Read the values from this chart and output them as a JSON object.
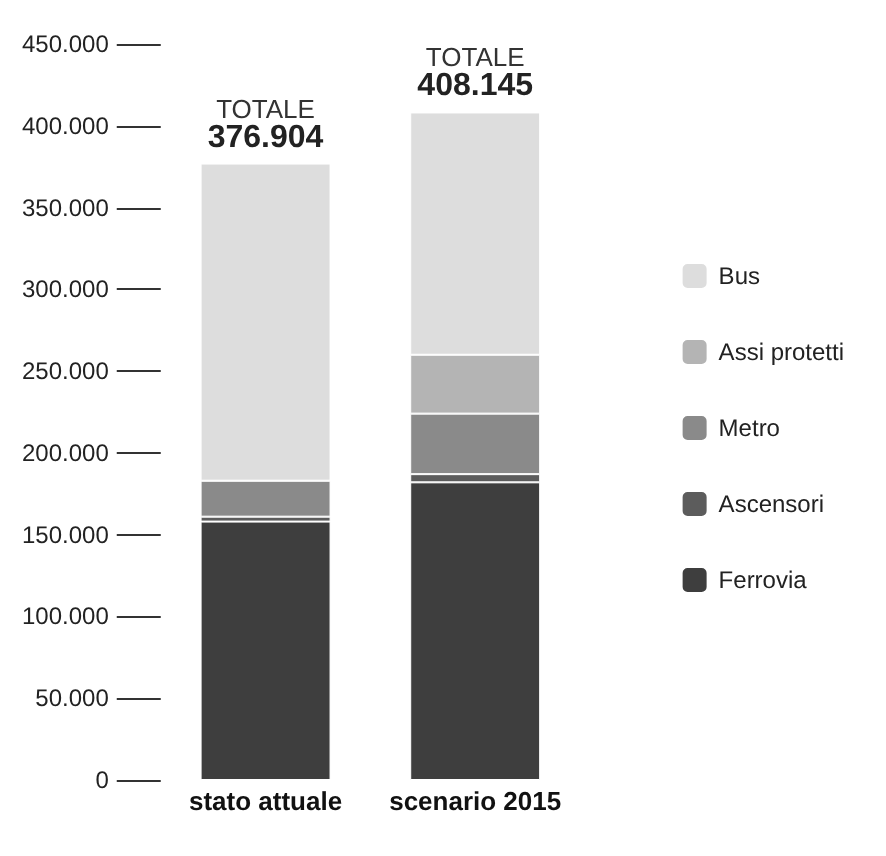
{
  "chart_data": {
    "type": "bar",
    "stacked": true,
    "categories": [
      "stato attuale",
      "scenario 2015"
    ],
    "series": [
      {
        "name": "Ferrovia",
        "color": "#3e3e3e",
        "values": [
          158000,
          182000
        ]
      },
      {
        "name": "Ascensori",
        "color": "#5c5c5c",
        "values": [
          3000,
          5000
        ]
      },
      {
        "name": "Metro",
        "color": "#8a8a8a",
        "values": [
          22000,
          37000
        ]
      },
      {
        "name": "Assi protetti",
        "color": "#b4b4b4",
        "values": [
          0,
          36000
        ]
      },
      {
        "name": "Bus",
        "color": "#dddddd",
        "values": [
          193904,
          148145
        ]
      }
    ],
    "totals": [
      "376.904",
      "408.145"
    ],
    "annotations": [
      "TOTALE",
      "TOTALE"
    ],
    "ylim": [
      0,
      450000
    ],
    "yticks": [
      {
        "value": 0,
        "label": "0"
      },
      {
        "value": 50000,
        "label": "50.000"
      },
      {
        "value": 100000,
        "label": "100.000"
      },
      {
        "value": 150000,
        "label": "150.000"
      },
      {
        "value": 200000,
        "label": "200.000"
      },
      {
        "value": 250000,
        "label": "250.000"
      },
      {
        "value": 300000,
        "label": "300.000"
      },
      {
        "value": 350000,
        "label": "350.000"
      },
      {
        "value": 400000,
        "label": "400.000"
      },
      {
        "value": 450000,
        "label": "450.000"
      }
    ],
    "grid": false,
    "legend": "right"
  }
}
